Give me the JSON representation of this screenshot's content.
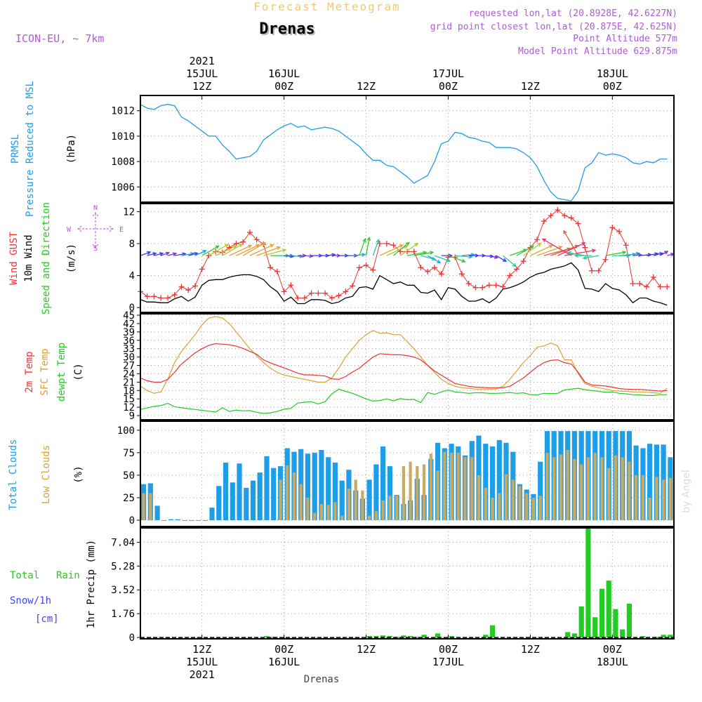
{
  "header": {
    "super_title": "Forecast Meteogram",
    "location": "Drenas",
    "model": "ICON-EU, ~ 7km",
    "requested": "requested lon,lat (20.8928E, 42.6227N)",
    "grid_point": "grid point closest lon,lat (20.875E, 42.625N)",
    "point_altitude": "Point Altitude 577m",
    "model_altitude": "Model Point Altitude 629.875m"
  },
  "footer": {
    "location": "Drenas",
    "watermark": "by Angel"
  },
  "time_axis": {
    "start": "2021-07-15T03:00Z",
    "end": "2021-07-18T05:00Z",
    "step_hours": 1,
    "ticks": [
      {
        "hour": 9,
        "top": [
          "2021",
          "15JUL",
          "12Z"
        ],
        "bottom": [
          "12Z",
          "15JUL",
          "2021"
        ]
      },
      {
        "hour": 21,
        "top": [
          "16JUL",
          "00Z"
        ],
        "bottom": [
          "00Z",
          "16JUL"
        ]
      },
      {
        "hour": 33,
        "top": [
          "12Z"
        ],
        "bottom": [
          "12Z"
        ]
      },
      {
        "hour": 45,
        "top": [
          "17JUL",
          "00Z"
        ],
        "bottom": [
          "00Z",
          "17JUL"
        ]
      },
      {
        "hour": 57,
        "top": [
          "12Z"
        ],
        "bottom": [
          "12Z"
        ]
      },
      {
        "hour": 69,
        "top": [
          "18JUL",
          "00Z"
        ],
        "bottom": [
          "00Z",
          "18JUL"
        ]
      }
    ]
  },
  "colors": {
    "pressure": "#1e9ee6",
    "gust": "#ee3333",
    "wind": "#000000",
    "temp2m": "#ee3333",
    "sfc": "#dca032",
    "dewpt": "#22cc22",
    "total_clouds": "#1e9ee6",
    "low_clouds": "#c8aa64",
    "rain": "#22cc22",
    "snow": "#4444ee",
    "label_purple": "#b05ad8",
    "title_gold": "#f0c878"
  },
  "panels": {
    "pressure": {
      "labels": [
        "PRMSL",
        "Pressure Reduced to MSL",
        "(hPa)"
      ],
      "ticks": [
        "1006",
        "1008",
        "1010",
        "1012"
      ]
    },
    "wind": {
      "labels": [
        "Wind GUST",
        "10m Wind",
        "Speed and Direction",
        "(m/s)"
      ],
      "ticks": [
        "0",
        "4",
        "8",
        "12"
      ],
      "compass": {
        "n": "N",
        "s": "S",
        "w": "W",
        "e": "E"
      }
    },
    "temp": {
      "labels": [
        "2m Temp",
        "SFC Temp",
        "dewpt Temp",
        "(C)"
      ],
      "ticks": [
        "9",
        "12",
        "15",
        "18",
        "21",
        "24",
        "27",
        "30",
        "33",
        "36",
        "39",
        "42",
        "45"
      ]
    },
    "clouds": {
      "labels": [
        "Total Clouds",
        "Low Clouds",
        "(%)"
      ],
      "ticks": [
        "0",
        "25",
        "50",
        "75",
        "100"
      ]
    },
    "precip": {
      "labels": [
        "Total",
        "Rain",
        "Snow/1h",
        "[cm]",
        "1hr Precip (mm)"
      ],
      "ticks": [
        "0",
        "1.76",
        "3.52",
        "5.28",
        "7.04"
      ]
    }
  },
  "chart_data": [
    {
      "type": "line",
      "name": "pressure",
      "title": "PRMSL Pressure Reduced to MSL",
      "ylabel": "(hPa)",
      "ylim": [
        1004.8,
        1013.2
      ],
      "x_hours_start": 0,
      "series": [
        {
          "name": "PRMSL",
          "values": [
            1012.5,
            1012.2,
            1012.1,
            1012.4,
            1012.5,
            1012.4,
            1011.5,
            1011.2,
            1010.8,
            1010.4,
            1010.0,
            1010.0,
            1009.3,
            1008.8,
            1008.2,
            1008.3,
            1008.4,
            1008.8,
            1009.7,
            1010.1,
            1010.5,
            1010.8,
            1011.0,
            1010.7,
            1010.8,
            1010.5,
            1010.6,
            1010.7,
            1010.6,
            1010.4,
            1010.0,
            1009.6,
            1009.2,
            1008.6,
            1008.1,
            1008.1,
            1007.7,
            1007.6,
            1007.2,
            1006.8,
            1006.3,
            1006.6,
            1006.9,
            1008.0,
            1009.4,
            1009.6,
            1010.3,
            1010.2,
            1009.9,
            1009.8,
            1009.6,
            1009.5,
            1009.1,
            1009.1,
            1009.1,
            1009.0,
            1008.7,
            1008.3,
            1007.6,
            1006.5,
            1005.6,
            1005.1,
            1005.0,
            1004.9,
            1005.7,
            1007.5,
            1007.9,
            1008.7,
            1008.5,
            1008.6,
            1008.5,
            1008.3,
            1007.9,
            1007.8,
            1008.0,
            1007.9,
            1008.2,
            1008.2
          ]
        }
      ]
    },
    {
      "type": "line",
      "name": "wind",
      "title": "Wind GUST / 10m Wind Speed and Direction",
      "ylabel": "(m/s)",
      "ylim": [
        -0.6,
        13.0
      ],
      "x_hours_start": 0,
      "series": [
        {
          "name": "Wind GUST",
          "values": [
            2.0,
            1.4,
            1.4,
            1.2,
            1.2,
            1.6,
            2.6,
            2.2,
            2.7,
            4.8,
            6.5,
            7.0,
            6.9,
            7.5,
            8.0,
            8.2,
            9.4,
            8.5,
            7.9,
            5.0,
            4.5,
            2.0,
            2.8,
            1.2,
            1.2,
            1.8,
            1.8,
            1.8,
            1.2,
            1.5,
            2.0,
            2.7,
            5.0,
            5.3,
            4.7,
            8.0,
            8.0,
            7.8,
            7.0,
            7.0,
            7.0,
            5.0,
            4.5,
            5.0,
            4.2,
            6.3,
            6.3,
            4.2,
            3.0,
            2.5,
            2.5,
            2.8,
            2.8,
            2.6,
            4.0,
            4.8,
            5.8,
            7.5,
            8.5,
            10.8,
            11.5,
            12.2,
            11.5,
            11.2,
            10.5,
            7.5,
            4.6,
            4.6,
            6.0,
            10.0,
            9.5,
            7.8,
            3.0,
            3.0,
            2.6,
            3.8,
            2.6,
            2.6
          ]
        },
        {
          "name": "10m Wind",
          "values": [
            1.0,
            0.7,
            0.7,
            0.6,
            0.6,
            1.1,
            1.4,
            0.8,
            1.3,
            2.8,
            3.4,
            3.5,
            3.5,
            3.8,
            4.0,
            4.1,
            4.1,
            3.9,
            3.5,
            2.6,
            2.0,
            0.8,
            1.3,
            0.5,
            0.5,
            1.0,
            1.0,
            0.9,
            0.5,
            0.7,
            1.2,
            1.4,
            2.5,
            2.6,
            2.3,
            4.0,
            3.5,
            3.0,
            3.2,
            2.8,
            2.8,
            1.9,
            1.8,
            2.2,
            1.0,
            2.5,
            2.3,
            1.4,
            0.8,
            0.8,
            1.1,
            0.6,
            1.2,
            2.3,
            2.5,
            2.8,
            3.2,
            3.8,
            4.2,
            4.4,
            4.8,
            5.0,
            5.2,
            5.6,
            4.7,
            2.4,
            2.3,
            2.0,
            3.0,
            2.4,
            2.2,
            1.6,
            0.6,
            1.2,
            1.2,
            0.8,
            0.6,
            0.3
          ]
        }
      ],
      "wind_direction_deg_from": [
        250,
        255,
        255,
        250,
        255,
        260,
        260,
        255,
        245,
        240,
        240,
        245,
        240,
        245,
        245,
        240,
        245,
        250,
        255,
        270,
        270,
        275,
        275,
        270,
        275,
        270,
        270,
        265,
        270,
        270,
        270,
        265,
        200,
        190,
        200,
        245,
        245,
        230,
        235,
        260,
        260,
        285,
        300,
        290,
        270,
        290,
        275,
        265,
        270,
        270,
        275,
        285,
        300,
        310,
        250,
        240,
        235,
        245,
        250,
        255,
        250,
        245,
        260,
        120,
        150,
        100,
        90,
        80,
        260,
        270,
        265,
        260,
        265,
        265,
        260,
        255,
        240,
        255
      ]
    },
    {
      "type": "line",
      "name": "temperature",
      "title": "2m Temp / SFC Temp / dewpt Temp",
      "ylabel": "(C)",
      "ylim": [
        7.5,
        45.5
      ],
      "x_hours_start": 0,
      "series": [
        {
          "name": "2m Temp",
          "values": [
            22.5,
            21.5,
            21.0,
            21.0,
            22.0,
            24.5,
            27.5,
            29.5,
            31.5,
            33.0,
            34.2,
            34.8,
            34.6,
            34.4,
            33.9,
            33.1,
            32.0,
            31.0,
            29.0,
            27.9,
            27.0,
            26.1,
            25.2,
            24.2,
            23.6,
            23.6,
            23.4,
            23.2,
            22.2,
            22.0,
            23.0,
            24.6,
            26.0,
            28.0,
            30.0,
            31.2,
            31.0,
            30.8,
            30.8,
            30.5,
            30.0,
            29.0,
            27.0,
            25.0,
            23.5,
            22.0,
            20.5,
            20.0,
            19.5,
            19.2,
            19.1,
            19.0,
            19.0,
            19.0,
            19.5,
            21.0,
            22.5,
            24.5,
            26.5,
            28.0,
            28.8,
            29.0,
            28.0,
            27.5,
            24.5,
            21.0,
            20.0,
            19.8,
            19.6,
            19.2,
            18.7,
            18.5,
            18.4,
            18.4,
            18.2,
            18.0,
            17.8,
            18.0
          ]
        },
        {
          "name": "SFC Temp",
          "values": [
            19.5,
            18.0,
            17.0,
            17.5,
            22.0,
            28.0,
            32.0,
            35.0,
            38.0,
            41.5,
            44.0,
            44.5,
            44.0,
            42.0,
            39.0,
            36.0,
            33.0,
            30.5,
            28.0,
            26.0,
            24.5,
            23.5,
            23.0,
            22.5,
            22.0,
            21.5,
            21.0,
            21.0,
            22.5,
            26.0,
            30.0,
            33.0,
            36.0,
            38.0,
            39.5,
            38.5,
            38.7,
            38.0,
            38.0,
            35.5,
            33.0,
            30.0,
            27.0,
            24.5,
            22.0,
            20.5,
            19.5,
            19.0,
            18.8,
            18.5,
            18.5,
            18.5,
            18.5,
            19.5,
            22.0,
            25.0,
            28.0,
            30.5,
            33.5,
            34.0,
            35.0,
            34.0,
            29.0,
            29.0,
            24.0,
            20.5,
            19.5,
            19.0,
            18.5,
            18.0,
            17.8,
            17.7,
            17.5,
            17.5,
            17.4,
            17.2,
            17.0,
            18.8
          ]
        },
        {
          "name": "dewpt Temp",
          "values": [
            11.2,
            11.8,
            12.3,
            12.6,
            13.4,
            12.2,
            11.8,
            11.5,
            11.2,
            10.9,
            10.6,
            10.3,
            11.8,
            10.5,
            11.0,
            10.7,
            10.8,
            10.2,
            9.8,
            10.0,
            10.5,
            11.3,
            11.6,
            13.5,
            13.8,
            14.0,
            13.2,
            14.0,
            16.8,
            18.5,
            17.7,
            17.0,
            16.0,
            15.0,
            14.2,
            14.4,
            15.0,
            14.3,
            15.1,
            14.7,
            14.8,
            13.7,
            17.3,
            16.6,
            17.5,
            18.2,
            17.5,
            17.3,
            17.0,
            17.2,
            17.2,
            17.0,
            17.0,
            17.1,
            17.3,
            17.0,
            17.2,
            16.5,
            16.4,
            17.0,
            16.9,
            17.0,
            18.2,
            18.5,
            18.8,
            18.3,
            18.0,
            17.7,
            17.4,
            17.5,
            17.0,
            16.8,
            16.5,
            16.4,
            16.2,
            16.2,
            16.5,
            16.5
          ]
        }
      ]
    },
    {
      "type": "bar",
      "name": "clouds",
      "title": "Total Clouds / Low Clouds",
      "ylabel": "(%)",
      "ylim": [
        -7,
        110
      ],
      "x_hours_start": 0,
      "series": [
        {
          "name": "Total Clouds",
          "values": [
            40,
            41,
            16,
            0,
            1,
            1,
            0,
            0,
            0,
            0,
            14,
            38,
            64,
            42,
            63,
            36,
            44,
            53,
            71,
            58,
            60,
            80,
            76,
            79,
            74,
            75,
            78,
            70,
            64,
            44,
            56,
            33,
            24,
            45,
            62,
            82,
            60,
            28,
            18,
            22,
            46,
            28,
            68,
            86,
            80,
            85,
            82,
            72,
            88,
            94,
            85,
            82,
            89,
            86,
            76,
            40,
            34,
            29,
            65,
            99,
            99,
            99,
            99,
            99,
            99,
            99,
            99,
            99,
            99,
            99,
            99,
            99,
            83,
            80,
            85,
            84,
            84,
            70
          ]
        },
        {
          "name": "Low Clouds",
          "values": [
            30,
            30,
            0,
            0,
            0,
            0,
            0,
            0,
            0,
            0,
            0,
            0,
            0,
            0,
            0,
            0,
            0,
            0,
            0,
            0,
            45,
            61,
            53,
            40,
            25,
            8,
            18,
            17,
            20,
            5,
            35,
            45,
            33,
            5,
            10,
            22,
            27,
            27,
            60,
            65,
            60,
            62,
            74,
            55,
            76,
            75,
            75,
            70,
            70,
            50,
            36,
            25,
            30,
            51,
            45,
            38,
            30,
            25,
            27,
            75,
            70,
            73,
            78,
            68,
            62,
            70,
            75,
            70,
            58,
            72,
            70,
            65,
            50,
            50,
            25,
            48,
            45,
            47
          ]
        }
      ]
    },
    {
      "type": "bar",
      "name": "precip",
      "title": "1hr Precip (mm) - Total Rain / Snow",
      "ylabel": "1hr Precip (mm)",
      "ylim": [
        -0.1,
        8.1
      ],
      "x_hours_start": 0,
      "series": [
        {
          "name": "Total Rain",
          "values": [
            0,
            0,
            0,
            0,
            0,
            0,
            0,
            0,
            0,
            0,
            0,
            0,
            0,
            0,
            0,
            0,
            0,
            0,
            0.1,
            0.05,
            0,
            0,
            0,
            0,
            0,
            0,
            0,
            0,
            0,
            0,
            0,
            0,
            0,
            0.1,
            0.1,
            0.15,
            0.1,
            0.05,
            0.15,
            0.1,
            0.05,
            0.2,
            0,
            0.3,
            0,
            0.1,
            0,
            0,
            0,
            0,
            0.2,
            0.9,
            0,
            0,
            0,
            0,
            0,
            0,
            0,
            0,
            0,
            0,
            0.4,
            0.3,
            2.3,
            8.1,
            1.5,
            3.6,
            4.2,
            2.1,
            0.6,
            2.5,
            0,
            0.1,
            0,
            0.05,
            0.2,
            0.2
          ]
        },
        {
          "name": "Snow/1h",
          "values": [
            0,
            0,
            0,
            0,
            0,
            0,
            0,
            0,
            0,
            0,
            0,
            0,
            0,
            0,
            0,
            0,
            0,
            0,
            0,
            0,
            0,
            0,
            0,
            0,
            0,
            0,
            0,
            0,
            0,
            0,
            0,
            0,
            0,
            0,
            0,
            0,
            0,
            0,
            0,
            0,
            0,
            0,
            0,
            0,
            0,
            0,
            0,
            0,
            0,
            0,
            0,
            0,
            0,
            0,
            0,
            0,
            0,
            0,
            0,
            0,
            0,
            0,
            0,
            0,
            0,
            0,
            0,
            0,
            0,
            0,
            0,
            0,
            0,
            0,
            0,
            0,
            0,
            0
          ]
        }
      ]
    }
  ]
}
